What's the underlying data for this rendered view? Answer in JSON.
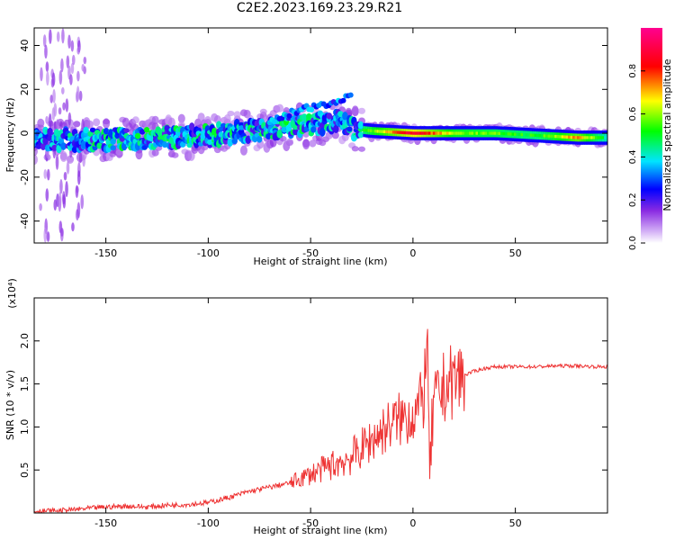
{
  "title": "C2E2.2023.169.23.29.R21",
  "chart_data": [
    {
      "type": "heatmap",
      "xlabel": "Height of straight line (km)",
      "ylabel": "Frequency (Hz)",
      "xlim": [
        -185,
        95
      ],
      "ylim": [
        -50,
        48
      ],
      "x_ticks": [
        -150,
        -100,
        -50,
        0,
        50
      ],
      "y_ticks": [
        -40,
        -20,
        0,
        20,
        40
      ],
      "grid": false,
      "colorbar": {
        "label": "Normalized spectral amplitude",
        "range": [
          0,
          1
        ],
        "ticks": [
          "0.0",
          "0.2",
          "0.4",
          "0.6",
          "0.8"
        ],
        "colormap": "rainbow (white-purple-blue-cyan-green-yellow-red-magenta)",
        "colors": [
          "#ffffff",
          "#8a2be2",
          "#0000ff",
          "#00e5ff",
          "#00ff00",
          "#ffff00",
          "#ff0000",
          "#ff0090"
        ]
      },
      "ridge": {
        "x": [
          -185,
          -150,
          -120,
          -100,
          -80,
          -60,
          -40,
          -35,
          -30,
          -20,
          0,
          20,
          40,
          60,
          80,
          95
        ],
        "frequency": [
          -3,
          -3,
          -2,
          -1,
          1,
          3,
          5,
          6,
          2,
          1,
          0,
          0,
          0,
          -1,
          -2,
          -2
        ],
        "amplitude": [
          0.35,
          0.45,
          0.45,
          0.45,
          0.45,
          0.45,
          0.4,
          0.35,
          0.4,
          0.6,
          0.9,
          0.6,
          0.55,
          0.5,
          0.75,
          0.4
        ]
      }
    },
    {
      "type": "line",
      "xlabel": "Height of straight line (km)",
      "ylabel": "SNR (10 * v/v)",
      "y_multiplier": "(x10⁴)",
      "xlim": [
        -185,
        95
      ],
      "ylim": [
        0,
        2.5
      ],
      "x_ticks": [
        -150,
        -100,
        -50,
        0,
        50
      ],
      "y_ticks": [
        0.5,
        1.0,
        1.5,
        2.0
      ],
      "grid": false,
      "series": [
        {
          "color": "#ee3333",
          "x": [
            -185,
            -170,
            -160,
            -150,
            -140,
            -130,
            -120,
            -110,
            -100,
            -90,
            -80,
            -70,
            -60,
            -50,
            -45,
            -40,
            -35,
            -30,
            -25,
            -20,
            -15,
            -10,
            -5,
            0,
            5,
            7,
            8,
            10,
            15,
            20,
            25,
            30,
            35,
            40,
            50,
            60,
            70,
            80,
            90,
            95
          ],
          "y": [
            0.02,
            0.03,
            0.05,
            0.07,
            0.08,
            0.07,
            0.09,
            0.1,
            0.12,
            0.18,
            0.25,
            0.3,
            0.35,
            0.45,
            0.5,
            0.55,
            0.6,
            0.65,
            0.75,
            0.85,
            0.95,
            1.05,
            1.1,
            1.15,
            1.3,
            2.1,
            0.4,
            1.25,
            1.45,
            1.55,
            1.6,
            1.65,
            1.68,
            1.7,
            1.7,
            1.7,
            1.71,
            1.71,
            1.7,
            1.7
          ]
        }
      ]
    }
  ]
}
